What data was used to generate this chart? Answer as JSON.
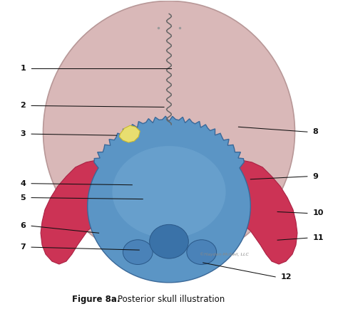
{
  "title": "Figure 8a.",
  "subtitle": "Posterior skull illustration",
  "title_fontsize": 8.5,
  "background_color": "#ffffff",
  "skull_pink": "#d9b8b8",
  "skull_pink_edge": "#b89898",
  "skull_blue": "#5b95c5",
  "skull_blue_light": "#7ab0d8",
  "skull_yellow": "#e8de70",
  "skull_yellow_edge": "#c8b830",
  "skull_red": "#cc3355",
  "skull_red_edge": "#aa2244",
  "suture_color": "#666666",
  "label_color": "#111111",
  "line_color": "#111111",
  "copyright": "©Hayden-McNeil, LLC"
}
